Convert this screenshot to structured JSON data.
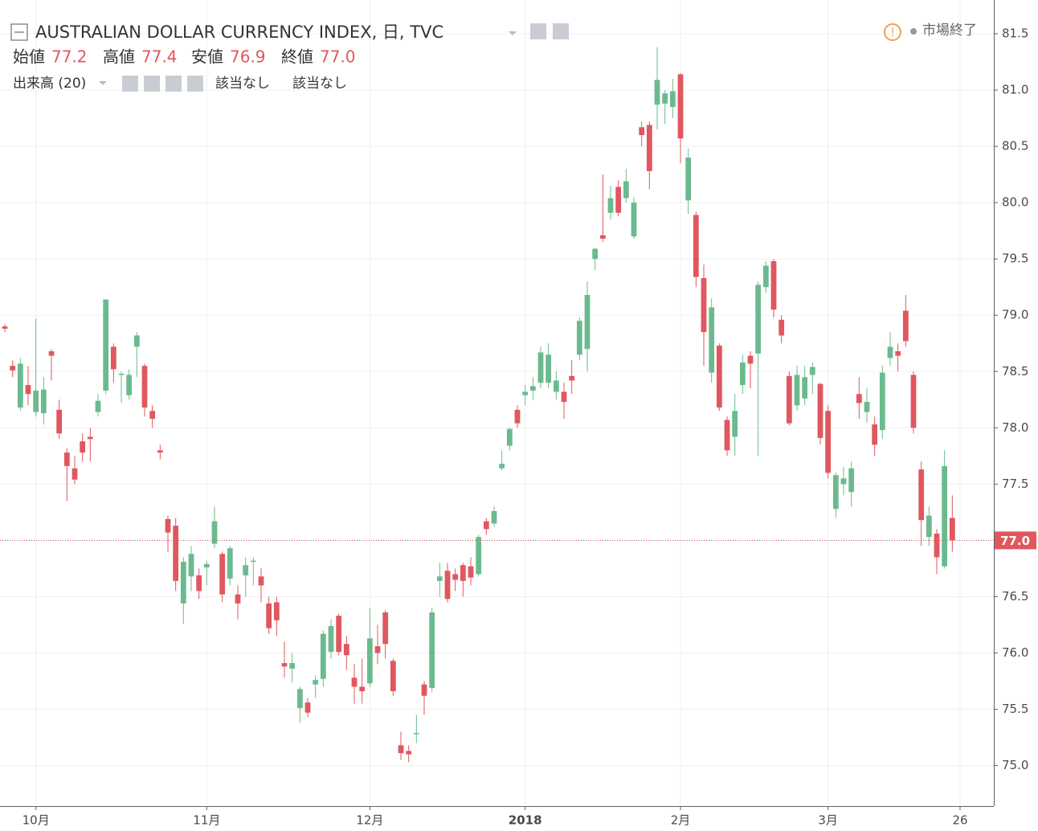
{
  "chart_data": {
    "type": "candlestick",
    "title": "AUSTRALIAN DOLLAR CURRENCY INDEX, 日, TVC",
    "legend": {
      "open_label": "始値",
      "open": "77.2",
      "high_label": "高値",
      "high": "77.4",
      "low_label": "安値",
      "low": "76.9",
      "close_label": "終値",
      "close": "77.0"
    },
    "volume_label": "出来高 (20)",
    "volume_values": [
      "該当なし",
      "該当なし"
    ],
    "status": "市場終了",
    "last_price": {
      "value": 77.0,
      "label": "77.0"
    },
    "up_color": "#6bba8e",
    "down_color": "#e0575e",
    "grid": true,
    "ylim": [
      74.64,
      81.8
    ],
    "yticks": [
      {
        "value": 75,
        "label": "75.0"
      },
      75.5,
      {
        "value": 76,
        "label": "76.0"
      },
      76.5,
      {
        "value": 77,
        "label": "77.0"
      },
      77.5,
      {
        "value": 78,
        "label": "78.0"
      },
      78.5,
      {
        "value": 79,
        "label": "79.0"
      },
      79.5,
      {
        "value": 80,
        "label": "80.0"
      },
      80.5,
      {
        "value": 81,
        "label": "81.0"
      },
      81.5
    ],
    "categories": [
      null,
      null,
      null,
      null,
      "10月",
      null,
      null,
      null,
      null,
      null,
      null,
      null,
      null,
      null,
      null,
      null,
      null,
      null,
      null,
      null,
      null,
      null,
      null,
      null,
      null,
      null,
      "11月",
      null,
      null,
      null,
      null,
      null,
      null,
      null,
      null,
      null,
      null,
      null,
      null,
      null,
      null,
      null,
      null,
      null,
      null,
      null,
      null,
      "12月",
      null,
      null,
      null,
      null,
      null,
      null,
      null,
      null,
      null,
      null,
      null,
      null,
      null,
      null,
      null,
      null,
      null,
      null,
      null,
      "2018",
      null,
      null,
      null,
      null,
      null,
      null,
      null,
      null,
      null,
      null,
      null,
      null,
      null,
      null,
      null,
      null,
      null,
      null,
      null,
      "2月",
      null,
      null,
      null,
      null,
      null,
      null,
      null,
      null,
      null,
      null,
      null,
      null,
      null,
      null,
      null,
      null,
      null,
      null,
      "3月",
      null,
      null,
      null,
      null,
      null,
      null,
      null,
      null,
      null,
      null,
      null,
      null,
      null,
      null,
      null,
      null,
      "26"
    ],
    "open": [
      78.9,
      78.55,
      78.18,
      78.38,
      78.14,
      78.13,
      78.68,
      78.16,
      77.78,
      77.64,
      77.88,
      77.92,
      78.14,
      78.33,
      78.72,
      78.47,
      78.29,
      78.72,
      78.55,
      78.15,
      77.8,
      77.19,
      77.13,
      76.44,
      76.68,
      76.69,
      76.76,
      76.97,
      76.88,
      76.66,
      76.52,
      76.69,
      76.81,
      76.68,
      76.44,
      76.45,
      75.91,
      75.86,
      75.51,
      75.56,
      75.72,
      75.77,
      76.01,
      76.33,
      76.08,
      75.78,
      75.7,
      75.73,
      76.06,
      76.36,
      75.93,
      75.18,
      75.13,
      75.28,
      75.72,
      75.69,
      76.64,
      76.73,
      76.7,
      76.78,
      76.77,
      76.7,
      77.17,
      77.15,
      77.64,
      77.84,
      78.16,
      78.29,
      78.33,
      78.4,
      78.4,
      78.32,
      78.32,
      78.46,
      78.65,
      78.7,
      79.5,
      79.71,
      79.91,
      80.14,
      80.04,
      79.7,
      80.67,
      80.69,
      80.87,
      80.88,
      80.85,
      81.14,
      80.02,
      79.89,
      79.33,
      78.49,
      78.73,
      78.07,
      77.92,
      78.38,
      78.64,
      78.66,
      79.25,
      79.48,
      78.96,
      78.46,
      78.2,
      78.26,
      78.47,
      78.39,
      78.15,
      77.28,
      77.5,
      77.43,
      78.3,
      78.14,
      78.03,
      77.98,
      78.62,
      78.68,
      79.04,
      78.47,
      77.63,
      77.03,
      77.06,
      76.77,
      77.2,
      null
    ],
    "high": [
      78.92,
      78.6,
      78.62,
      78.55,
      78.97,
      78.45,
      78.7,
      78.25,
      77.82,
      77.75,
      77.95,
      78.0,
      78.3,
      79.14,
      78.75,
      78.5,
      78.52,
      78.85,
      78.57,
      78.2,
      77.85,
      77.22,
      77.2,
      76.85,
      76.95,
      76.75,
      76.82,
      77.3,
      76.9,
      76.95,
      76.6,
      76.85,
      76.85,
      76.75,
      76.5,
      76.5,
      76.1,
      76.0,
      75.7,
      75.6,
      75.8,
      76.2,
      76.3,
      76.35,
      76.15,
      75.9,
      75.95,
      76.4,
      76.25,
      76.38,
      75.95,
      75.3,
      75.18,
      75.45,
      75.75,
      76.4,
      76.8,
      76.8,
      76.75,
      76.8,
      76.85,
      77.05,
      77.2,
      77.3,
      77.8,
      78.0,
      78.2,
      78.38,
      78.45,
      78.72,
      78.75,
      78.5,
      78.4,
      78.6,
      78.98,
      79.3,
      79.6,
      80.25,
      80.15,
      80.2,
      80.3,
      80.05,
      80.72,
      80.72,
      81.38,
      81.0,
      81.1,
      81.15,
      80.48,
      79.92,
      79.45,
      79.15,
      78.75,
      78.1,
      78.3,
      78.65,
      78.68,
      79.3,
      79.48,
      79.5,
      79.0,
      78.5,
      78.55,
      78.55,
      78.58,
      78.4,
      78.2,
      77.6,
      77.65,
      77.7,
      78.45,
      78.35,
      78.1,
      78.55,
      78.85,
      78.75,
      79.18,
      78.5,
      77.7,
      77.3,
      77.1,
      77.8,
      77.4,
      null
    ],
    "low": [
      78.85,
      78.45,
      78.15,
      78.2,
      78.1,
      78.03,
      78.42,
      77.9,
      77.35,
      77.5,
      77.7,
      77.7,
      78.1,
      78.3,
      78.4,
      78.22,
      78.25,
      78.45,
      78.1,
      78.0,
      77.72,
      76.9,
      76.55,
      76.26,
      76.55,
      76.48,
      76.6,
      76.93,
      76.45,
      76.6,
      76.3,
      76.5,
      76.6,
      76.45,
      76.17,
      76.15,
      75.78,
      75.74,
      75.38,
      75.43,
      75.6,
      75.7,
      75.95,
      75.98,
      75.85,
      75.55,
      75.55,
      75.7,
      75.9,
      75.95,
      75.62,
      75.05,
      75.03,
      75.2,
      75.45,
      75.65,
      76.5,
      76.45,
      76.55,
      76.5,
      76.6,
      76.68,
      77.05,
      77.12,
      77.62,
      77.8,
      78.0,
      78.2,
      78.25,
      78.35,
      78.35,
      78.25,
      78.08,
      78.3,
      78.6,
      78.5,
      79.4,
      79.65,
      79.85,
      79.88,
      80.0,
      79.68,
      80.5,
      80.12,
      80.65,
      80.7,
      80.75,
      80.35,
      79.9,
      79.25,
      78.55,
      78.4,
      78.15,
      77.75,
      77.75,
      78.3,
      78.35,
      77.75,
      79.2,
      78.98,
      78.75,
      78.02,
      78.15,
      78.2,
      78.3,
      77.85,
      77.55,
      77.2,
      77.4,
      77.3,
      78.08,
      78.05,
      77.75,
      77.9,
      78.55,
      78.5,
      78.72,
      77.95,
      76.95,
      76.95,
      76.7,
      76.75,
      76.9,
      null
    ],
    "close": [
      78.88,
      78.51,
      78.57,
      78.3,
      78.33,
      78.34,
      78.64,
      77.95,
      77.66,
      77.54,
      77.78,
      77.9,
      78.24,
      79.14,
      78.52,
      78.48,
      78.47,
      78.82,
      78.18,
      78.08,
      77.78,
      77.07,
      76.64,
      76.81,
      76.88,
      76.55,
      76.79,
      77.17,
      76.52,
      76.93,
      76.44,
      76.78,
      76.82,
      76.6,
      76.22,
      76.29,
      75.88,
      75.91,
      75.68,
      75.47,
      75.76,
      76.17,
      76.24,
      76.01,
      75.98,
      75.7,
      75.66,
      76.13,
      76.0,
      76.08,
      75.66,
      75.11,
      75.1,
      75.29,
      75.62,
      76.36,
      76.68,
      76.48,
      76.65,
      76.64,
      76.67,
      77.03,
      77.1,
      77.26,
      77.68,
      77.99,
      78.04,
      78.32,
      78.37,
      78.67,
      78.65,
      78.42,
      78.23,
      78.42,
      78.95,
      79.18,
      79.59,
      79.68,
      80.04,
      79.91,
      80.19,
      80.0,
      80.6,
      80.28,
      81.09,
      80.97,
      80.99,
      80.57,
      80.4,
      79.34,
      78.85,
      79.07,
      78.18,
      77.8,
      78.15,
      78.58,
      78.57,
      79.27,
      79.44,
      79.05,
      78.82,
      78.04,
      78.47,
      78.45,
      78.54,
      77.91,
      77.6,
      77.58,
      77.55,
      77.64,
      78.22,
      78.23,
      77.85,
      78.49,
      78.72,
      78.64,
      78.77,
      78.0,
      77.18,
      77.22,
      76.85,
      77.66,
      77.0,
      null
    ]
  }
}
